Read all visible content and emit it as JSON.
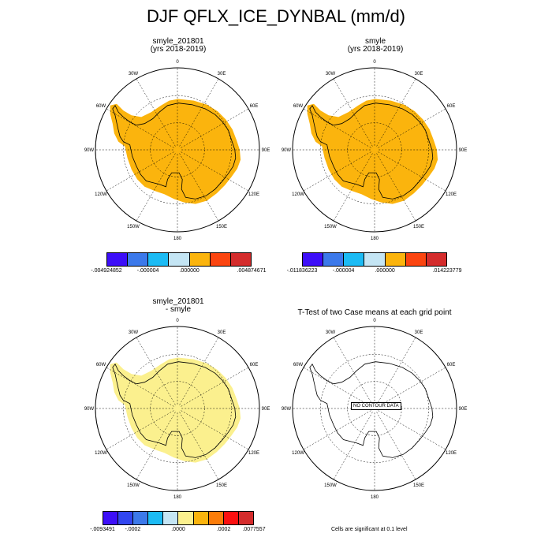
{
  "title": "DJF QFLX_ICE_DYNBAL (mm/d)",
  "lon_labels": [
    "0",
    "30E",
    "60E",
    "90E",
    "120E",
    "150E",
    "180",
    "150W",
    "120W",
    "90W",
    "60W",
    "30W"
  ],
  "panels": [
    {
      "title1": "smyle_201801",
      "title2": "(yrs 2018-2019)",
      "fill": "#fbb40d",
      "colorbar": {
        "colors": [
          "#3d0ff8",
          "#3c79ea",
          "#1cbbf4",
          "#c4e5f4",
          "#fbb40d",
          "#fb4510",
          "#d42c2c"
        ],
        "labels": [
          "-.004924852",
          "-.000004",
          ".000000",
          ".004874671"
        ]
      }
    },
    {
      "title1": "smyle",
      "title2": "(yrs 2018-2019)",
      "fill": "#fbb40d",
      "colorbar": {
        "colors": [
          "#3d0ff8",
          "#3c79ea",
          "#1cbbf4",
          "#c4e5f4",
          "#fbb40d",
          "#fb4510",
          "#d42c2c"
        ],
        "labels": [
          "-.011836223",
          "-.000004",
          ".000000",
          ".014223779"
        ]
      }
    },
    {
      "title1": "smyle_201801",
      "title2": "- smyle",
      "fill": "#fbf08e",
      "colorbar": {
        "colors": [
          "#3d0ff8",
          "#3146f0",
          "#3c79ea",
          "#1cbbf4",
          "#c4e5f4",
          "#fbf08e",
          "#fbb40d",
          "#fb7c09",
          "#fb1010",
          "#d42c2c"
        ],
        "labels": [
          "-.0093491",
          "-.0002",
          ".0000",
          ".0002",
          ".0077557"
        ]
      }
    },
    {
      "title1": "T-Test of two Case means at each grid point",
      "title2": "",
      "fill": "none",
      "nodata": "NO CONTOUR DATA"
    }
  ],
  "significance_note": "Cells are significant at 0.1 level"
}
